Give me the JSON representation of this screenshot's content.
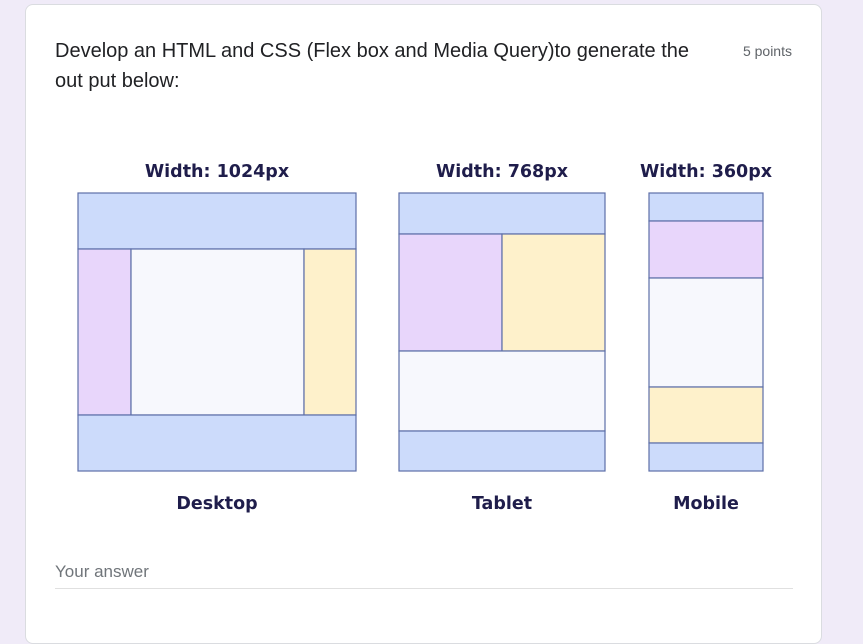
{
  "question": {
    "title": "Develop an HTML and CSS (Flex box and Media Query)to generate the out put below:",
    "points": "5 points"
  },
  "diagrams": {
    "desktop": {
      "width_label": "Width: 1024px",
      "caption": "Desktop"
    },
    "tablet": {
      "width_label": "Width: 768px",
      "caption": "Tablet"
    },
    "mobile": {
      "width_label": "Width: 360px",
      "caption": "Mobile"
    }
  },
  "colors": {
    "header_footer": "#ccdbfb",
    "purple_block": "#e8d6fb",
    "yellow_block": "#fef1cb",
    "white_block": "#f7f8fd",
    "stroke": "#5d6fa8"
  },
  "answer": {
    "placeholder": "Your answer"
  }
}
